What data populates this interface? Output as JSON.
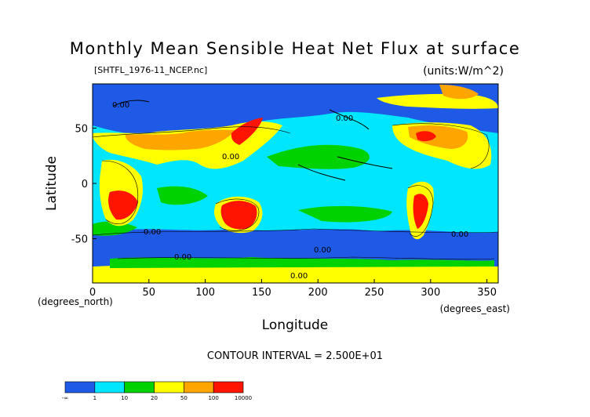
{
  "chart_data": {
    "type": "heatmap",
    "title": "Monthly Mean Sensible Heat Net Flux at surface",
    "subtitle_left": "[SHTFL_1976-11_NCEP.nc]",
    "subtitle_right": "(units:W/m^2)",
    "xlabel": "Longitude",
    "ylabel": "Latitude",
    "x_unit_note": "(degrees_east)",
    "y_unit_note": "(degrees_north)",
    "xlim": [
      0,
      360
    ],
    "ylim": [
      -90,
      90
    ],
    "x_ticks": [
      "0",
      "50",
      "100",
      "150",
      "200",
      "250",
      "300",
      "350"
    ],
    "y_ticks": [
      "50",
      "0",
      "-50"
    ],
    "contour_note": "CONTOUR INTERVAL = 2.500E+01",
    "contour_labels": [
      "0.00",
      "0.00",
      "0.00",
      "0.00",
      "0.00",
      "0.00",
      "0.00",
      "0.00"
    ],
    "colorbar": {
      "colors": [
        "#1e5ae6",
        "#00e6ff",
        "#00d200",
        "#ffff00",
        "#ffa500",
        "#ff1400"
      ],
      "tick_labels": [
        "-∞",
        "1",
        "10",
        "20",
        "50",
        "100",
        "10000"
      ]
    },
    "categories": [
      "< 1",
      "1–10",
      "10–20",
      "20–50",
      "50–100",
      "100–10000"
    ],
    "grid": false
  }
}
